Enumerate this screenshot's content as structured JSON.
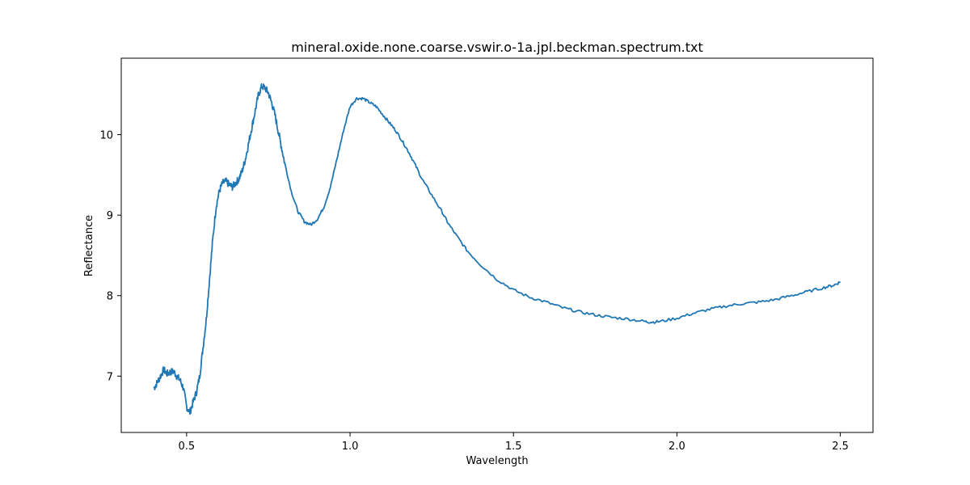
{
  "chart_data": {
    "type": "line",
    "title": "mineral.oxide.none.coarse.vswir.o-1a.jpl.beckman.spectrum.txt",
    "xlabel": "Wavelength",
    "ylabel": "Reflectance",
    "xlim": [
      0.3,
      2.6
    ],
    "ylim": [
      6.3,
      10.95
    ],
    "xticks": [
      0.5,
      1.0,
      1.5,
      2.0,
      2.5
    ],
    "xtick_labels": [
      "0.5",
      "1.0",
      "1.5",
      "2.0",
      "2.5"
    ],
    "yticks": [
      7,
      8,
      9,
      10
    ],
    "ytick_labels": [
      "7",
      "8",
      "9",
      "10"
    ],
    "grid": false,
    "series": [
      {
        "color": "#1f77b4",
        "x": [
          0.4,
          0.41,
          0.42,
          0.43,
          0.44,
          0.45,
          0.46,
          0.47,
          0.48,
          0.49,
          0.5,
          0.51,
          0.52,
          0.53,
          0.54,
          0.55,
          0.56,
          0.57,
          0.58,
          0.59,
          0.6,
          0.61,
          0.62,
          0.63,
          0.64,
          0.65,
          0.66,
          0.67,
          0.68,
          0.69,
          0.7,
          0.71,
          0.72,
          0.73,
          0.74,
          0.75,
          0.76,
          0.77,
          0.78,
          0.79,
          0.8,
          0.82,
          0.84,
          0.86,
          0.88,
          0.9,
          0.92,
          0.94,
          0.96,
          0.98,
          1.0,
          1.02,
          1.04,
          1.06,
          1.08,
          1.1,
          1.12,
          1.14,
          1.16,
          1.18,
          1.2,
          1.22,
          1.25,
          1.28,
          1.3,
          1.33,
          1.36,
          1.4,
          1.45,
          1.5,
          1.55,
          1.6,
          1.65,
          1.7,
          1.75,
          1.8,
          1.85,
          1.9,
          1.92,
          1.95,
          2.0,
          2.05,
          2.1,
          2.15,
          2.2,
          2.25,
          2.3,
          2.35,
          2.4,
          2.45,
          2.48,
          2.5
        ],
        "y": [
          6.85,
          6.92,
          7.0,
          7.08,
          7.03,
          7.05,
          7.06,
          7.0,
          6.95,
          6.85,
          6.62,
          6.55,
          6.68,
          6.8,
          7.0,
          7.35,
          7.7,
          8.2,
          8.7,
          9.1,
          9.3,
          9.4,
          9.42,
          9.38,
          9.35,
          9.4,
          9.45,
          9.55,
          9.7,
          9.9,
          10.1,
          10.3,
          10.5,
          10.6,
          10.58,
          10.52,
          10.4,
          10.25,
          10.05,
          9.85,
          9.65,
          9.3,
          9.05,
          8.92,
          8.88,
          8.95,
          9.1,
          9.35,
          9.7,
          10.05,
          10.35,
          10.45,
          10.45,
          10.4,
          10.35,
          10.25,
          10.15,
          10.05,
          9.92,
          9.78,
          9.62,
          9.45,
          9.25,
          9.05,
          8.9,
          8.72,
          8.55,
          8.38,
          8.2,
          8.07,
          7.98,
          7.92,
          7.85,
          7.8,
          7.76,
          7.73,
          7.71,
          7.68,
          7.67,
          7.68,
          7.72,
          7.78,
          7.83,
          7.87,
          7.9,
          7.92,
          7.95,
          8.0,
          8.05,
          8.1,
          8.13,
          8.17
        ]
      }
    ]
  }
}
